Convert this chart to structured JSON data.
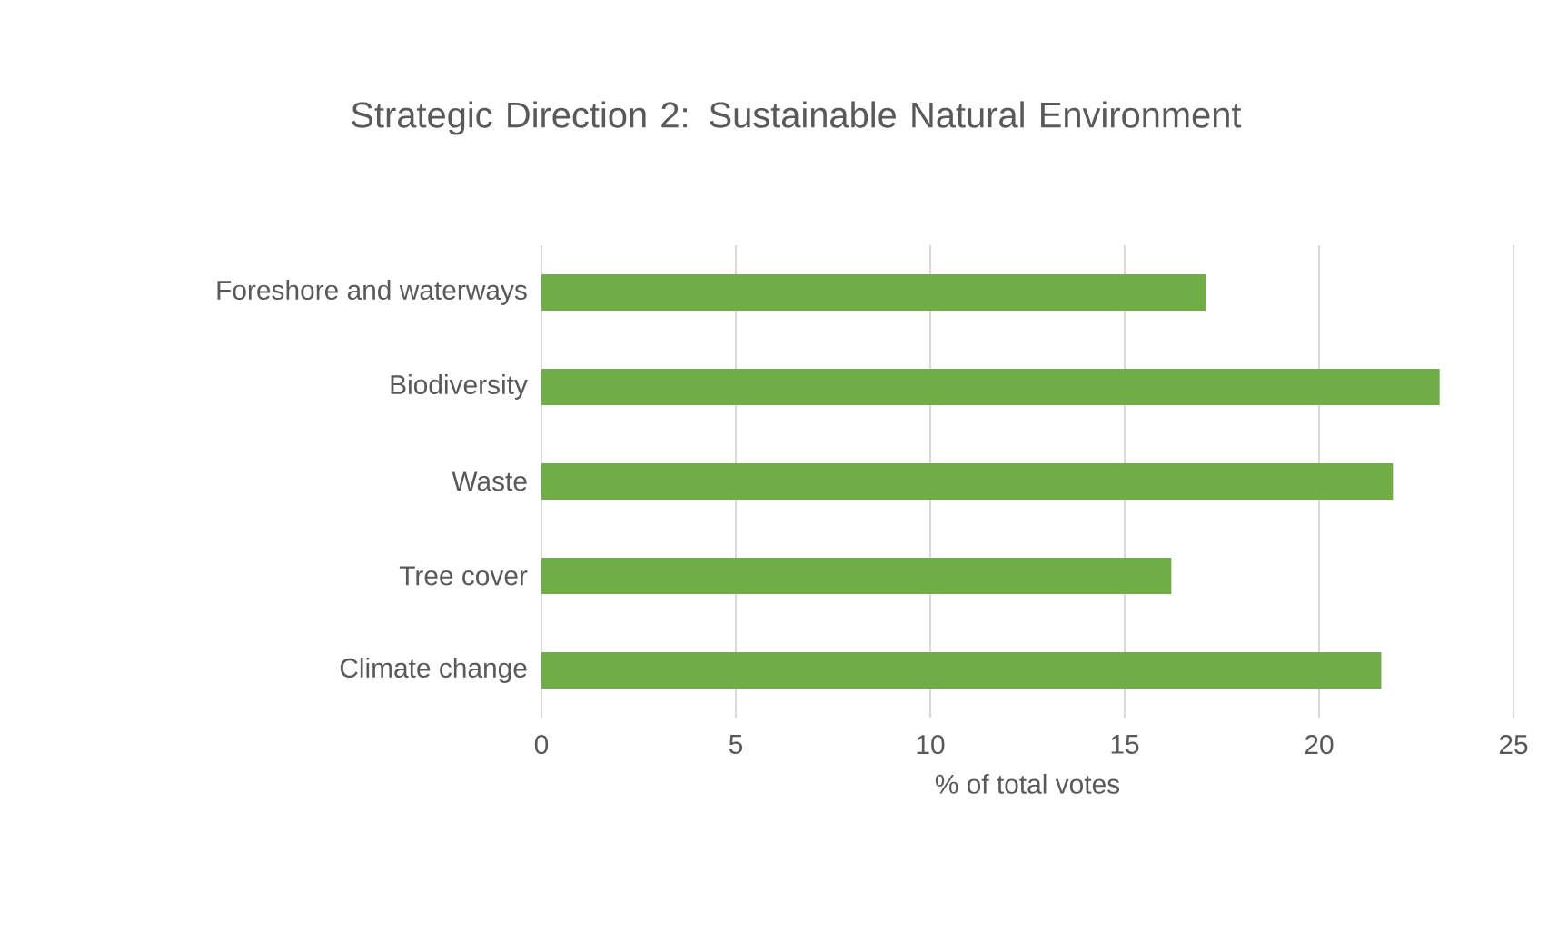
{
  "chart_data": {
    "type": "bar",
    "orientation": "horizontal",
    "title": "Strategic Direction 2: Sustainable Natural Environment",
    "xlabel": "% of total votes",
    "categories": [
      "Foreshore and waterways",
      "Biodiversity",
      "Waste",
      "Tree cover",
      "Climate change"
    ],
    "values": [
      17.1,
      23.1,
      21.9,
      16.2,
      21.6
    ],
    "color": "#70ad47",
    "xlim": [
      0,
      25
    ],
    "xticks": [
      0,
      5,
      10,
      15,
      20,
      25
    ],
    "grid": "x"
  }
}
